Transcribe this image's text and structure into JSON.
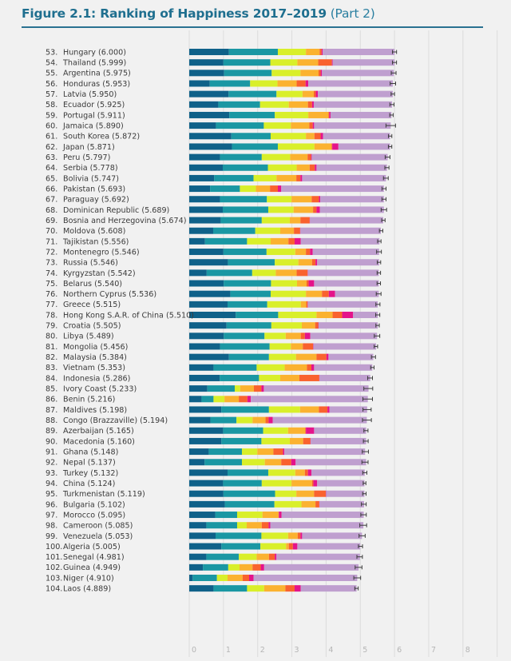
{
  "title": {
    "main": "Figure 2.1: Ranking of Happiness 2017–2019",
    "part": "(Part 2)"
  },
  "chart_data": {
    "type": "bar",
    "orientation": "horizontal",
    "stacked": true,
    "title": "Figure 2.1: Ranking of Happiness 2017–2019 (Part 2)",
    "xlabel": "",
    "ylabel": "",
    "xlim": [
      0,
      8
    ],
    "x_ticks": [
      "0",
      "1",
      "2",
      "3",
      "4",
      "5",
      "6",
      "7",
      "8"
    ],
    "grid": true,
    "legend": "none",
    "segment_colors": [
      "#0f6189",
      "#1a97a3",
      "#d9ef2a",
      "#fbb230",
      "#f9622e",
      "#e4148a",
      "#bf9fcf"
    ],
    "segment_names": [
      "segment-1",
      "segment-2",
      "segment-3",
      "segment-4",
      "segment-5",
      "segment-6",
      "segment-7"
    ],
    "rows": [
      {
        "rank": 53,
        "country": "Hungary",
        "score": 6.0,
        "parts": [
          1.16,
          1.43,
          0.82,
          0.4,
          0.06,
          0.03,
          2.1
        ],
        "ci": 0.06
      },
      {
        "rank": 54,
        "country": "Thailand",
        "score": 5.999,
        "parts": [
          1.0,
          1.37,
          0.79,
          0.61,
          0.4,
          0.02,
          1.81
        ],
        "ci": 0.06
      },
      {
        "rank": 55,
        "country": "Argentina",
        "score": 5.975,
        "parts": [
          1.02,
          1.39,
          0.84,
          0.53,
          0.06,
          0.04,
          2.1
        ],
        "ci": 0.07
      },
      {
        "rank": 56,
        "country": "Honduras",
        "score": 5.953,
        "parts": [
          0.6,
          1.18,
          0.8,
          0.56,
          0.26,
          0.08,
          2.47
        ],
        "ci": 0.08
      },
      {
        "rank": 57,
        "country": "Latvia",
        "score": 5.95,
        "parts": [
          1.15,
          1.4,
          0.76,
          0.33,
          0.06,
          0.06,
          2.19
        ],
        "ci": 0.05
      },
      {
        "rank": 58,
        "country": "Ecuador",
        "score": 5.925,
        "parts": [
          0.85,
          1.22,
          0.84,
          0.56,
          0.12,
          0.05,
          2.29
        ],
        "ci": 0.06
      },
      {
        "rank": 59,
        "country": "Portugal",
        "score": 5.911,
        "parts": [
          1.17,
          1.33,
          0.98,
          0.59,
          0.02,
          0.04,
          1.78
        ],
        "ci": 0.05
      },
      {
        "rank": 60,
        "country": "Jamaica",
        "score": 5.89,
        "parts": [
          0.78,
          1.4,
          0.79,
          0.54,
          0.1,
          0.04,
          2.24
        ],
        "ci": 0.14
      },
      {
        "rank": 61,
        "country": "South Korea",
        "score": 5.872,
        "parts": [
          1.23,
          1.15,
          1.03,
          0.25,
          0.18,
          0.07,
          1.96
        ],
        "ci": 0.05
      },
      {
        "rank": 62,
        "country": "Japan",
        "score": 5.871,
        "parts": [
          1.25,
          1.34,
          1.07,
          0.5,
          0.02,
          0.18,
          1.51
        ],
        "ci": 0.05
      },
      {
        "rank": 63,
        "country": "Peru",
        "score": 5.797,
        "parts": [
          0.9,
          1.22,
          0.83,
          0.51,
          0.1,
          0.02,
          2.22
        ],
        "ci": 0.07
      },
      {
        "rank": 64,
        "country": "Serbia",
        "score": 5.778,
        "parts": [
          0.98,
          1.32,
          0.84,
          0.38,
          0.15,
          0.05,
          2.06
        ],
        "ci": 0.06
      },
      {
        "rank": 65,
        "country": "Bolivia",
        "score": 5.747,
        "parts": [
          0.73,
          1.15,
          0.67,
          0.58,
          0.12,
          0.05,
          2.45
        ],
        "ci": 0.07
      },
      {
        "rank": 66,
        "country": "Pakistan",
        "score": 5.693,
        "parts": [
          0.61,
          0.87,
          0.47,
          0.41,
          0.23,
          0.1,
          3.0
        ],
        "ci": 0.06
      },
      {
        "rank": 67,
        "country": "Paraguay",
        "score": 5.692,
        "parts": [
          0.9,
          1.37,
          0.72,
          0.59,
          0.21,
          0.04,
          1.86
        ],
        "ci": 0.06
      },
      {
        "rank": 68,
        "country": "Dominican Republic",
        "score": 5.689,
        "parts": [
          0.98,
          1.33,
          0.74,
          0.57,
          0.1,
          0.1,
          1.87
        ],
        "ci": 0.08
      },
      {
        "rank": 69,
        "country": "Bosnia and Herzegovina",
        "score": 5.674,
        "parts": [
          0.92,
          1.2,
          0.82,
          0.31,
          0.27,
          0.01,
          2.14
        ],
        "ci": 0.05
      },
      {
        "rank": 70,
        "country": "Moldova",
        "score": 5.608,
        "parts": [
          0.7,
          1.23,
          0.73,
          0.4,
          0.18,
          0.01,
          2.35
        ],
        "ci": 0.05
      },
      {
        "rank": 71,
        "country": "Tajikistan",
        "score": 5.556,
        "parts": [
          0.46,
          1.23,
          0.69,
          0.52,
          0.18,
          0.18,
          2.3
        ],
        "ci": 0.05
      },
      {
        "rank": 72,
        "country": "Montenegro",
        "score": 5.546,
        "parts": [
          1.0,
          1.26,
          0.84,
          0.31,
          0.12,
          0.08,
          1.94
        ],
        "ci": 0.07
      },
      {
        "rank": 73,
        "country": "Russia",
        "score": 5.546,
        "parts": [
          1.13,
          1.37,
          0.69,
          0.4,
          0.1,
          0.05,
          1.81
        ],
        "ci": 0.05
      },
      {
        "rank": 74,
        "country": "Kyrgyzstan",
        "score": 5.542,
        "parts": [
          0.51,
          1.33,
          0.69,
          0.61,
          0.32,
          0.01,
          2.07
        ],
        "ci": 0.05
      },
      {
        "rank": 75,
        "country": "Belarus",
        "score": 5.54,
        "parts": [
          1.01,
          1.38,
          0.76,
          0.28,
          0.06,
          0.16,
          1.89
        ],
        "ci": 0.05
      },
      {
        "rank": 76,
        "country": "Northern Cyprus",
        "score": 5.536,
        "parts": [
          1.2,
          1.18,
          1.03,
          0.47,
          0.2,
          0.18,
          1.28
        ],
        "ci": 0.07
      },
      {
        "rank": 77,
        "country": "Greece",
        "score": 5.515,
        "parts": [
          1.12,
          1.16,
          0.98,
          0.16,
          0.04,
          0.01,
          2.04
        ],
        "ci": 0.06
      },
      {
        "rank": 78,
        "country": "Hong Kong S.A.R. of China",
        "score": 5.51,
        "parts": [
          1.36,
          1.24,
          1.12,
          0.47,
          0.28,
          0.32,
          0.72
        ],
        "ci": 0.06
      },
      {
        "rank": 79,
        "country": "Croatia",
        "score": 5.505,
        "parts": [
          1.09,
          1.31,
          0.89,
          0.39,
          0.09,
          0.01,
          1.73
        ],
        "ci": 0.05
      },
      {
        "rank": 80,
        "country": "Libya",
        "score": 5.489,
        "parts": [
          1.01,
          1.19,
          0.62,
          0.44,
          0.12,
          0.16,
          1.95
        ],
        "ci": 0.08
      },
      {
        "rank": 81,
        "country": "Mongolia",
        "score": 5.456,
        "parts": [
          0.9,
          1.45,
          0.62,
          0.35,
          0.3,
          0.01,
          1.83
        ],
        "ci": 0.05
      },
      {
        "rank": 82,
        "country": "Malaysia",
        "score": 5.384,
        "parts": [
          1.16,
          1.17,
          0.79,
          0.6,
          0.29,
          0.06,
          1.31
        ],
        "ci": 0.06
      },
      {
        "rank": 83,
        "country": "Vietnam",
        "score": 5.353,
        "parts": [
          0.71,
          1.26,
          0.82,
          0.65,
          0.13,
          0.08,
          1.7
        ],
        "ci": 0.05
      },
      {
        "rank": 84,
        "country": "Indonesia",
        "score": 5.286,
        "parts": [
          0.89,
          1.15,
          0.62,
          0.56,
          0.58,
          0.01,
          1.48
        ],
        "ci": 0.07
      },
      {
        "rank": 85,
        "country": "Ivory Coast",
        "score": 5.233,
        "parts": [
          0.53,
          0.8,
          0.16,
          0.4,
          0.22,
          0.07,
          3.06
        ],
        "ci": 0.13
      },
      {
        "rank": 86,
        "country": "Benin",
        "score": 5.216,
        "parts": [
          0.36,
          0.35,
          0.32,
          0.42,
          0.25,
          0.1,
          3.42
        ],
        "ci": 0.14
      },
      {
        "rank": 87,
        "country": "Maldives",
        "score": 5.198,
        "parts": [
          0.94,
          1.39,
          0.91,
          0.55,
          0.25,
          0.06,
          1.1
        ],
        "ci": 0.12
      },
      {
        "rank": 88,
        "country": "Congo (Brazzaville)",
        "score": 5.194,
        "parts": [
          0.62,
          0.76,
          0.47,
          0.38,
          0.09,
          0.12,
          2.75
        ],
        "ci": 0.13
      },
      {
        "rank": 89,
        "country": "Azerbaijan",
        "score": 5.165,
        "parts": [
          0.99,
          1.17,
          0.73,
          0.5,
          0.02,
          0.24,
          1.52
        ],
        "ci": 0.06
      },
      {
        "rank": 90,
        "country": "Macedonia",
        "score": 5.16,
        "parts": [
          0.94,
          1.17,
          0.83,
          0.39,
          0.21,
          0.01,
          1.62
        ],
        "ci": 0.07
      },
      {
        "rank": 91,
        "country": "Ghana",
        "score": 5.148,
        "parts": [
          0.57,
          0.97,
          0.45,
          0.47,
          0.28,
          0.04,
          2.36
        ],
        "ci": 0.09
      },
      {
        "rank": 92,
        "country": "Nepal",
        "score": 5.137,
        "parts": [
          0.45,
          1.09,
          0.67,
          0.48,
          0.29,
          0.13,
          2.06
        ],
        "ci": 0.09
      },
      {
        "rank": 93,
        "country": "Turkey",
        "score": 5.132,
        "parts": [
          1.12,
          1.19,
          0.79,
          0.28,
          0.09,
          0.1,
          1.56
        ],
        "ci": 0.06
      },
      {
        "rank": 94,
        "country": "China",
        "score": 5.124,
        "parts": [
          0.99,
          1.13,
          0.87,
          0.6,
          0.04,
          0.11,
          1.38
        ],
        "ci": 0.04
      },
      {
        "rank": 95,
        "country": "Turkmenistan",
        "score": 5.119,
        "parts": [
          1.0,
          1.51,
          0.62,
          0.52,
          0.34,
          0.01,
          1.12
        ],
        "ci": 0.05
      },
      {
        "rank": 96,
        "country": "Bulgaria",
        "score": 5.102,
        "parts": [
          1.04,
          1.45,
          0.79,
          0.41,
          0.11,
          0.01,
          1.3
        ],
        "ci": 0.07
      },
      {
        "rank": 97,
        "country": "Morocco",
        "score": 5.095,
        "parts": [
          0.76,
          0.64,
          0.74,
          0.47,
          0.01,
          0.08,
          2.4
        ],
        "ci": 0.08
      },
      {
        "rank": 98,
        "country": "Cameroon",
        "score": 5.085,
        "parts": [
          0.5,
          0.9,
          0.28,
          0.44,
          0.2,
          0.05,
          2.72
        ],
        "ci": 0.1
      },
      {
        "rank": 99,
        "country": "Venezuela",
        "score": 5.053,
        "parts": [
          0.77,
          1.34,
          0.78,
          0.28,
          0.08,
          0.05,
          1.75
        ],
        "ci": 0.09
      },
      {
        "rank": 100,
        "country": "Algeria",
        "score": 5.005,
        "parts": [
          0.94,
          1.14,
          0.75,
          0.08,
          0.12,
          0.13,
          1.84
        ],
        "ci": 0.06
      },
      {
        "rank": 101,
        "country": "Senegal",
        "score": 4.981,
        "parts": [
          0.5,
          0.95,
          0.52,
          0.36,
          0.17,
          0.05,
          2.44
        ],
        "ci": 0.08
      },
      {
        "rank": 102,
        "country": "Guinea",
        "score": 4.949,
        "parts": [
          0.4,
          0.74,
          0.33,
          0.38,
          0.24,
          0.1,
          2.76
        ],
        "ci": 0.1
      },
      {
        "rank": 103,
        "country": "Niger",
        "score": 4.91,
        "parts": [
          0.1,
          0.71,
          0.31,
          0.44,
          0.19,
          0.13,
          3.03
        ],
        "ci": 0.1
      },
      {
        "rank": 104,
        "country": "Laos",
        "score": 4.889,
        "parts": [
          0.71,
          0.98,
          0.5,
          0.62,
          0.27,
          0.18,
          1.63
        ],
        "ci": 0.05
      }
    ]
  }
}
